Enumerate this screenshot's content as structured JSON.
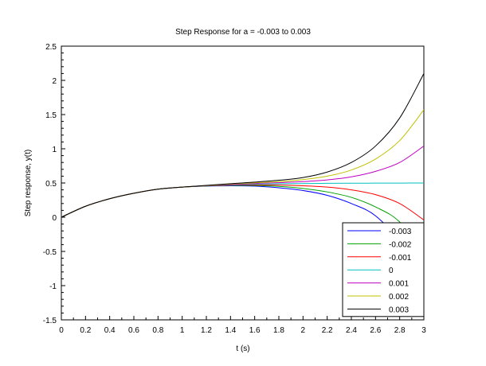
{
  "chart_data": {
    "type": "line",
    "title": "Step Response for a = -0.003 to 0.003",
    "xlabel": "t (s)",
    "ylabel": "Step response, y(t)",
    "xlim": [
      0,
      3
    ],
    "ylim": [
      -1.5,
      2.5
    ],
    "xticks": [
      "0",
      "0.2",
      "0.4",
      "0.6",
      "0.8",
      "1",
      "1.2",
      "1.4",
      "1.6",
      "1.8",
      "2",
      "2.2",
      "2.4",
      "2.6",
      "2.8",
      "3"
    ],
    "yticks": [
      "-1.5",
      "-1",
      "-0.5",
      "0",
      "0.5",
      "1",
      "1.5",
      "2",
      "2.5"
    ],
    "grid": false,
    "legend_position": "bottom-right",
    "x": [
      0,
      0.2,
      0.4,
      0.6,
      0.8,
      1.0,
      1.2,
      1.4,
      1.6,
      1.8,
      2.0,
      2.2,
      2.4,
      2.6,
      2.8,
      3.0
    ],
    "series": [
      {
        "name": "-0.003",
        "color": "#0000ff",
        "values": [
          0,
          0.16,
          0.27,
          0.35,
          0.41,
          0.44,
          0.455,
          0.46,
          0.455,
          0.43,
          0.39,
          0.32,
          0.2,
          0.02,
          -0.38,
          -1.13
        ]
      },
      {
        "name": "-0.002",
        "color": "#00a000",
        "values": [
          0,
          0.16,
          0.27,
          0.35,
          0.41,
          0.44,
          0.457,
          0.465,
          0.463,
          0.45,
          0.42,
          0.37,
          0.29,
          0.15,
          -0.07,
          -0.55
        ]
      },
      {
        "name": "-0.001",
        "color": "#ff0000",
        "values": [
          0,
          0.16,
          0.27,
          0.35,
          0.41,
          0.44,
          0.458,
          0.47,
          0.472,
          0.47,
          0.46,
          0.44,
          0.4,
          0.33,
          0.2,
          -0.04
        ]
      },
      {
        "name": "0",
        "color": "#00c0c0",
        "values": [
          0,
          0.16,
          0.27,
          0.35,
          0.41,
          0.44,
          0.46,
          0.475,
          0.483,
          0.489,
          0.492,
          0.495,
          0.497,
          0.498,
          0.499,
          0.5
        ]
      },
      {
        "name": "0.001",
        "color": "#c000c0",
        "values": [
          0,
          0.16,
          0.27,
          0.35,
          0.41,
          0.44,
          0.462,
          0.48,
          0.493,
          0.505,
          0.52,
          0.545,
          0.59,
          0.67,
          0.8,
          1.04
        ]
      },
      {
        "name": "0.002",
        "color": "#c0c000",
        "values": [
          0,
          0.16,
          0.27,
          0.35,
          0.41,
          0.44,
          0.463,
          0.485,
          0.503,
          0.52,
          0.55,
          0.6,
          0.69,
          0.85,
          1.12,
          1.57
        ]
      },
      {
        "name": "0.003",
        "color": "#000000",
        "values": [
          0,
          0.16,
          0.27,
          0.35,
          0.41,
          0.44,
          0.465,
          0.49,
          0.513,
          0.54,
          0.58,
          0.66,
          0.8,
          1.04,
          1.45,
          2.1
        ]
      }
    ]
  }
}
